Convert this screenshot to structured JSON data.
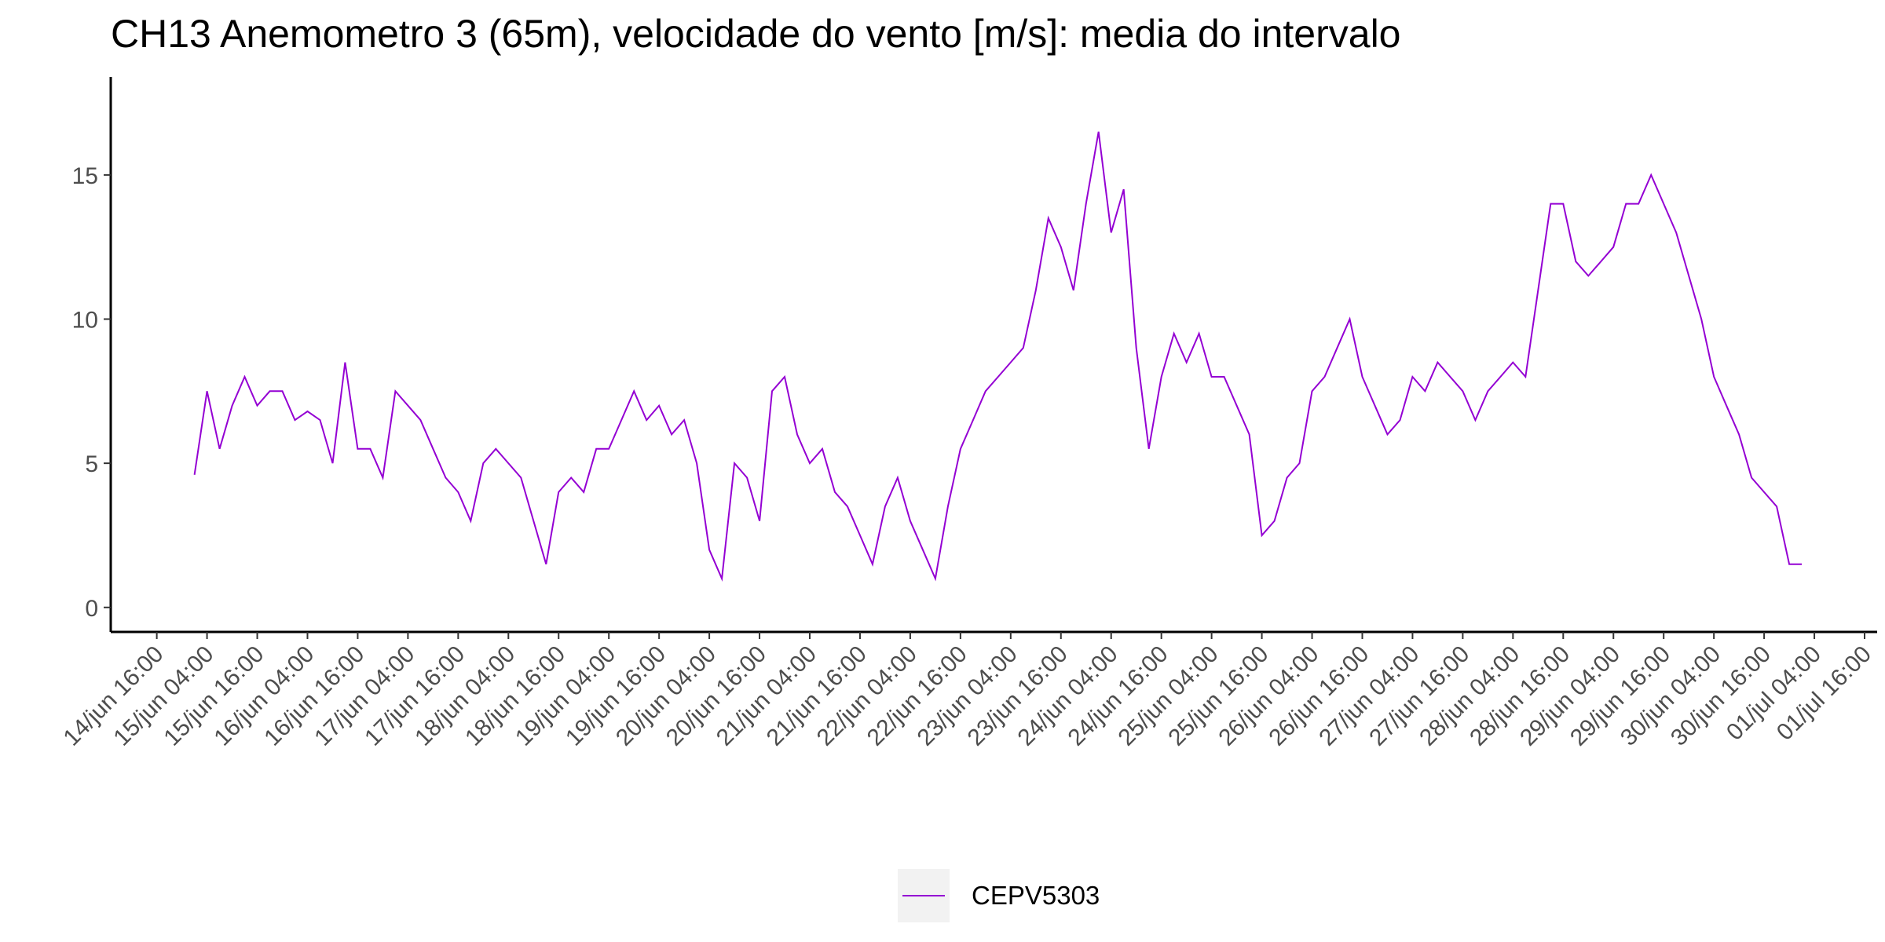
{
  "chart_data": {
    "type": "line",
    "title": "CH13 Anemometro 3 (65m), velocidade do vento [m/s]: media do intervalo",
    "x": [
      "15/jun 01:00",
      "15/jun 04:00",
      "15/jun 07:00",
      "15/jun 10:00",
      "15/jun 13:00",
      "15/jun 16:00",
      "15/jun 19:00",
      "15/jun 22:00",
      "16/jun 01:00",
      "16/jun 04:00",
      "16/jun 07:00",
      "16/jun 10:00",
      "16/jun 13:00",
      "16/jun 16:00",
      "16/jun 19:00",
      "16/jun 22:00",
      "17/jun 01:00",
      "17/jun 04:00",
      "17/jun 07:00",
      "17/jun 10:00",
      "17/jun 13:00",
      "17/jun 16:00",
      "17/jun 19:00",
      "17/jun 22:00",
      "18/jun 01:00",
      "18/jun 04:00",
      "18/jun 07:00",
      "18/jun 10:00",
      "18/jun 13:00",
      "18/jun 16:00",
      "18/jun 19:00",
      "18/jun 22:00",
      "19/jun 01:00",
      "19/jun 04:00",
      "19/jun 07:00",
      "19/jun 10:00",
      "19/jun 13:00",
      "19/jun 16:00",
      "19/jun 19:00",
      "19/jun 22:00",
      "20/jun 01:00",
      "20/jun 04:00",
      "20/jun 07:00",
      "20/jun 10:00",
      "20/jun 13:00",
      "20/jun 16:00",
      "20/jun 19:00",
      "20/jun 22:00",
      "21/jun 01:00",
      "21/jun 04:00",
      "21/jun 07:00",
      "21/jun 10:00",
      "21/jun 13:00",
      "21/jun 16:00",
      "21/jun 19:00",
      "21/jun 22:00",
      "22/jun 01:00",
      "22/jun 04:00",
      "22/jun 07:00",
      "22/jun 10:00",
      "22/jun 13:00",
      "22/jun 16:00",
      "22/jun 19:00",
      "22/jun 22:00",
      "23/jun 01:00",
      "23/jun 04:00",
      "23/jun 07:00",
      "23/jun 10:00",
      "23/jun 13:00",
      "23/jun 16:00",
      "23/jun 19:00",
      "23/jun 22:00",
      "24/jun 01:00",
      "24/jun 04:00",
      "24/jun 07:00",
      "24/jun 10:00",
      "24/jun 13:00",
      "24/jun 16:00",
      "24/jun 19:00",
      "24/jun 22:00",
      "25/jun 01:00",
      "25/jun 04:00",
      "25/jun 07:00",
      "25/jun 10:00",
      "25/jun 13:00",
      "25/jun 16:00",
      "25/jun 19:00",
      "25/jun 22:00",
      "26/jun 01:00",
      "26/jun 04:00",
      "26/jun 07:00",
      "26/jun 10:00",
      "26/jun 13:00",
      "26/jun 16:00",
      "26/jun 19:00",
      "26/jun 22:00",
      "27/jun 01:00",
      "27/jun 04:00",
      "27/jun 07:00",
      "27/jun 10:00",
      "27/jun 13:00",
      "27/jun 16:00",
      "27/jun 19:00",
      "27/jun 22:00",
      "28/jun 01:00",
      "28/jun 04:00",
      "28/jun 07:00",
      "28/jun 10:00",
      "28/jun 13:00",
      "28/jun 16:00",
      "28/jun 19:00",
      "28/jun 22:00",
      "29/jun 01:00",
      "29/jun 04:00",
      "29/jun 07:00",
      "29/jun 10:00",
      "29/jun 13:00",
      "29/jun 16:00",
      "29/jun 19:00",
      "29/jun 22:00",
      "30/jun 01:00",
      "30/jun 04:00",
      "30/jun 07:00",
      "30/jun 10:00",
      "30/jun 13:00",
      "30/jun 16:00",
      "30/jun 19:00",
      "30/jun 22:00",
      "01/jul 01:00"
    ],
    "series": [
      {
        "name": "CEPV5303",
        "color": "#9400d3",
        "values": [
          4.6,
          7.5,
          5.5,
          7.0,
          8.0,
          7.0,
          7.5,
          7.5,
          6.5,
          6.8,
          6.5,
          5.0,
          8.5,
          5.5,
          5.5,
          4.5,
          7.5,
          7.0,
          6.5,
          5.5,
          4.5,
          4.0,
          3.0,
          5.0,
          5.5,
          5.0,
          4.5,
          3.0,
          1.5,
          4.0,
          4.5,
          4.0,
          5.5,
          5.5,
          6.5,
          7.5,
          6.5,
          7.0,
          6.0,
          6.5,
          5.0,
          2.0,
          1.0,
          5.0,
          4.5,
          3.0,
          7.5,
          8.0,
          6.0,
          5.0,
          5.5,
          4.0,
          3.5,
          2.5,
          1.5,
          3.5,
          4.5,
          3.0,
          2.0,
          1.0,
          3.5,
          5.5,
          6.5,
          7.5,
          8.0,
          8.5,
          9.0,
          11.0,
          13.5,
          12.5,
          11.0,
          14.0,
          16.5,
          13.0,
          14.5,
          9.0,
          5.5,
          8.0,
          9.5,
          8.5,
          9.5,
          8.0,
          8.0,
          7.0,
          6.0,
          2.5,
          3.0,
          4.5,
          5.0,
          7.5,
          8.0,
          9.0,
          10.0,
          8.0,
          7.0,
          6.0,
          6.5,
          8.0,
          7.5,
          8.5,
          8.0,
          7.5,
          6.5,
          7.5,
          8.0,
          8.5,
          8.0,
          11.0,
          14.0,
          14.0,
          12.0,
          11.5,
          12.0,
          12.5,
          14.0,
          14.0,
          15.0,
          14.0,
          13.0,
          11.5,
          10.0,
          8.0,
          7.0,
          6.0,
          4.5,
          4.0,
          3.5,
          1.5,
          1.5
        ]
      }
    ],
    "xlim": [
      "14/jun 05:00",
      "01/jul 19:00"
    ],
    "xticks": [
      "14/jun 16:00",
      "15/jun 04:00",
      "15/jun 16:00",
      "16/jun 04:00",
      "16/jun 16:00",
      "17/jun 04:00",
      "17/jun 16:00",
      "18/jun 04:00",
      "18/jun 16:00",
      "19/jun 04:00",
      "19/jun 16:00",
      "20/jun 04:00",
      "20/jun 16:00",
      "21/jun 04:00",
      "21/jun 16:00",
      "22/jun 04:00",
      "22/jun 16:00",
      "23/jun 04:00",
      "23/jun 16:00",
      "24/jun 04:00",
      "24/jun 16:00",
      "25/jun 04:00",
      "25/jun 16:00",
      "26/jun 04:00",
      "26/jun 16:00",
      "27/jun 04:00",
      "27/jun 16:00",
      "28/jun 04:00",
      "28/jun 16:00",
      "29/jun 04:00",
      "29/jun 16:00",
      "30/jun 04:00",
      "30/jun 16:00",
      "01/jul 04:00",
      "01/jul 16:00"
    ],
    "ylim": [
      -0.85,
      18.4
    ],
    "yticks": [
      0,
      5,
      10,
      15
    ],
    "grid": false,
    "legend": "bottom"
  }
}
